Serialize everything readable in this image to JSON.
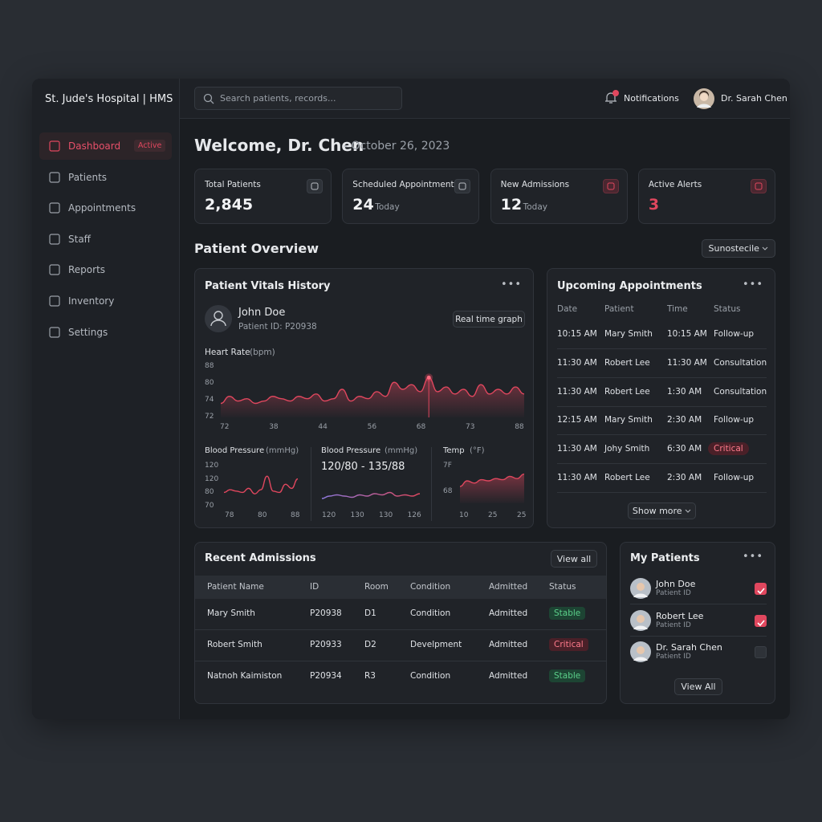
{
  "sidebar": {
    "brand": "St. Jude's Hospital | HMS",
    "nav": [
      {
        "label": "Dashboard",
        "badge": "Active"
      },
      {
        "label": "Patients"
      },
      {
        "label": "Appointments"
      },
      {
        "label": "Staff"
      },
      {
        "label": "Reports"
      },
      {
        "label": "Inventory"
      },
      {
        "label": "Settings"
      }
    ]
  },
  "header": {
    "search_placeholder": "Search patients, records...",
    "notifications": "Notifications",
    "user": "Dr. Sarah Chen"
  },
  "welcome": {
    "title": "Welcome, Dr. Chen",
    "date": "- October 26, 2023"
  },
  "stats": [
    {
      "label": "Total Patients",
      "value": "2,845"
    },
    {
      "label": "Scheduled Appointments",
      "value": "24",
      "unit": "Today"
    },
    {
      "label": "New Admissions",
      "value": "12",
      "unit": "Today"
    },
    {
      "label": "Active Alerts",
      "value": "3"
    }
  ],
  "overview": {
    "title": "Patient Overview",
    "dropdown": "Sunostecile"
  },
  "vitals": {
    "title": "Patient Vitals History",
    "patient_name": "John Doe",
    "patient_id": "Patient ID: P20938",
    "button": "Real time graph",
    "heart_rate": {
      "type": "line",
      "title": "Heart Rate",
      "unit": "(bpm)",
      "ylabels": [
        "88",
        "80",
        "74",
        "72"
      ],
      "xlabels": [
        "72",
        "38",
        "44",
        "56",
        "68",
        "73",
        "88"
      ],
      "ylim": [
        68,
        92
      ],
      "values": [
        74,
        77,
        75,
        76,
        74,
        75,
        77,
        76,
        75,
        77,
        76,
        78,
        75,
        76,
        80,
        75,
        77,
        76,
        79,
        77,
        83,
        80,
        82,
        79,
        85,
        79,
        81,
        78,
        80,
        77,
        82,
        78,
        80,
        78,
        81,
        78
      ]
    },
    "bp1": {
      "type": "line",
      "title": "Blood Pressure",
      "unit": "(mmHg)",
      "ylabels": [
        "120",
        "120",
        "80",
        "70"
      ],
      "xlabels": [
        "78",
        "80",
        "88"
      ],
      "ylim": [
        66,
        92
      ],
      "values": [
        74,
        76,
        75,
        74,
        77,
        73,
        76,
        86,
        75,
        74,
        80,
        77,
        84
      ]
    },
    "bp2": {
      "type": "line",
      "title": "Blood Pressure",
      "unit": "(mmHg)",
      "reading": "120/80 - 135/88",
      "xlabels": [
        "120",
        "130",
        "130",
        "126"
      ],
      "ylim": [
        70,
        86
      ],
      "values": [
        74,
        76,
        77,
        76,
        75,
        77,
        76,
        78,
        77,
        79,
        76,
        77,
        76,
        78
      ]
    },
    "temp": {
      "type": "line",
      "title": "Temp",
      "unit": "(°F)",
      "ylabels": [
        "7F",
        "68"
      ],
      "xlabels": [
        "10",
        "25",
        "25"
      ],
      "ylim": [
        60,
        90
      ],
      "values": [
        75,
        80,
        78,
        81,
        80,
        82,
        81,
        84,
        82,
        86
      ]
    }
  },
  "appointments": {
    "title": "Upcoming Appointments",
    "columns": [
      "Date",
      "Patient",
      "Time",
      "Status"
    ],
    "rows": [
      [
        "10:15 AM",
        "Mary Smith",
        "10:15 AM",
        "Follow-up"
      ],
      [
        "11:30 AM",
        "Robert Lee",
        "11:30 AM",
        "Consultation"
      ],
      [
        "11:30 AM",
        "Robert Lee",
        "1:30 AM",
        "Consultation"
      ],
      [
        "12:15 AM",
        "Mary Smith",
        "2:30 AM",
        "Follow-up"
      ],
      [
        "11:30 AM",
        "Johy Smith",
        "6:30 AM",
        "Critical"
      ],
      [
        "11:30 AM",
        "Robert Lee",
        "2:30 AM",
        "Follow-up"
      ]
    ],
    "button": "Show more"
  },
  "admissions": {
    "title": "Recent Admissions",
    "button": "View all",
    "columns": [
      "Patient Name",
      "ID",
      "Room",
      "Condition",
      "Admitted",
      "Status"
    ],
    "rows": [
      [
        "Mary Smith",
        "P20938",
        "D1",
        "Condition",
        "Admitted",
        "Stable"
      ],
      [
        "Robert Smith",
        "P20933",
        "D2",
        "Develpment",
        "Admitted",
        "Critical"
      ],
      [
        "Natnoh Kaimiston",
        "P20934",
        "R3",
        "Condition",
        "Admitted",
        "Stable"
      ]
    ]
  },
  "my_patients": {
    "title": "My Patients",
    "items": [
      {
        "name": "John Doe",
        "sub": "Patient ID",
        "checked": true
      },
      {
        "name": "Robert Lee",
        "sub": "Patient ID",
        "checked": true
      },
      {
        "name": "Dr. Sarah Chen",
        "sub": "Patient ID",
        "checked": false
      }
    ],
    "button": "View All"
  }
}
